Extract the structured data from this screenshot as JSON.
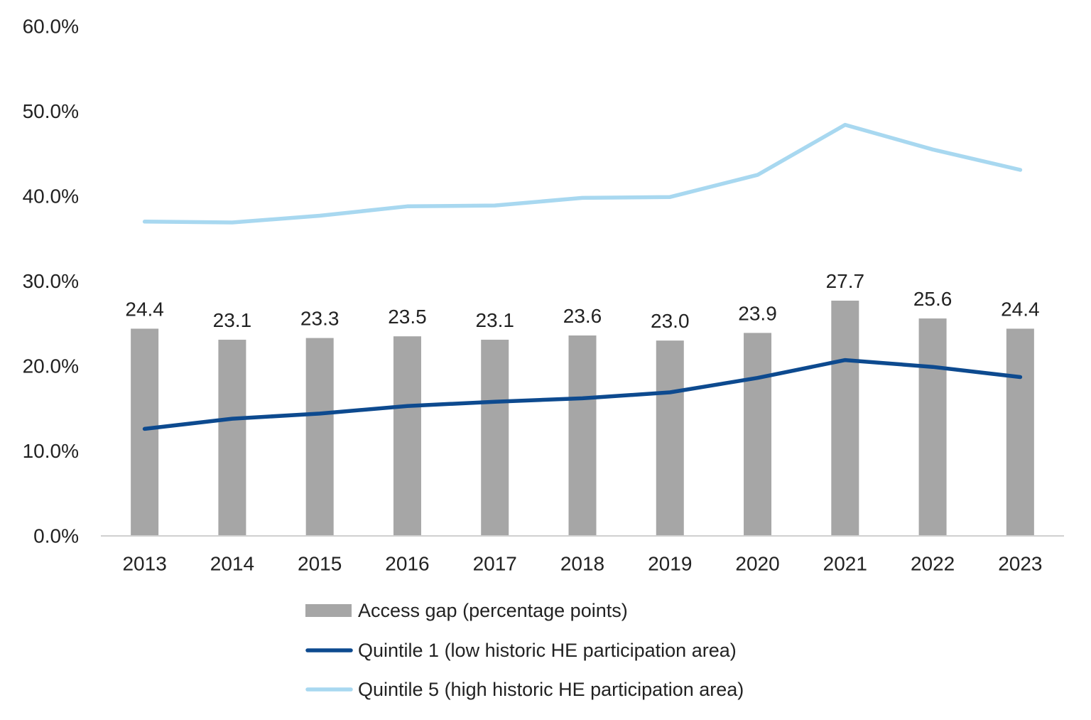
{
  "chart_data": {
    "type": "bar",
    "categories": [
      "2013",
      "2014",
      "2015",
      "2016",
      "2017",
      "2018",
      "2019",
      "2020",
      "2021",
      "2022",
      "2023"
    ],
    "ylim": [
      0,
      60
    ],
    "y_ticks": [
      "0.0%",
      "10.0%",
      "20.0%",
      "30.0%",
      "40.0%",
      "50.0%",
      "60.0%"
    ],
    "grid": false,
    "legend_placement": "bottom",
    "series": [
      {
        "name": "Access gap (percentage points)",
        "type": "bar",
        "color": "#a6a6a6",
        "values": [
          24.4,
          23.1,
          23.3,
          23.5,
          23.1,
          23.6,
          23.0,
          23.9,
          27.7,
          25.6,
          24.4
        ],
        "labels": [
          "24.4",
          "23.1",
          "23.3",
          "23.5",
          "23.1",
          "23.6",
          "23.0",
          "23.9",
          "27.7",
          "25.6",
          "24.4"
        ]
      },
      {
        "name": "Quintile 1 (low historic HE participation area)",
        "type": "line",
        "color": "#0d4a8f",
        "values": [
          12.6,
          13.8,
          14.4,
          15.3,
          15.8,
          16.2,
          16.9,
          18.6,
          20.7,
          19.9,
          18.7
        ]
      },
      {
        "name": "Quintile 5 (high historic HE participation area)",
        "type": "line",
        "color": "#a8d8f0",
        "values": [
          37.0,
          36.9,
          37.7,
          38.8,
          38.9,
          39.8,
          39.9,
          42.5,
          48.4,
          45.5,
          43.1
        ]
      }
    ]
  }
}
